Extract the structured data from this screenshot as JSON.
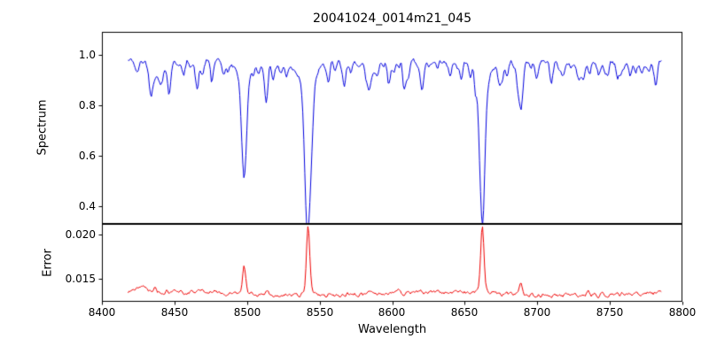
{
  "chart_data": {
    "type": "line",
    "title": "20041024_0014m21_045",
    "xlabel": "Wavelength",
    "xlim": [
      8400,
      8800
    ],
    "x_start": 8418,
    "x_end": 8786,
    "sample_step": 0.7,
    "seed": 42,
    "x_ticks": [
      8400,
      8450,
      8500,
      8550,
      8600,
      8650,
      8700,
      8750,
      8800
    ],
    "x_tick_labels": [
      "8400",
      "8450",
      "8500",
      "8550",
      "8600",
      "8650",
      "8700",
      "8750",
      "8800"
    ],
    "grid": false,
    "legend": "none",
    "panels": [
      {
        "name": "spectrum",
        "ylabel": "Spectrum",
        "color": "#0000dd",
        "ylim": [
          0.33,
          1.09
        ],
        "yticks": [
          0.4,
          0.6,
          0.8,
          1.0
        ],
        "ytick_labels": [
          "0.4",
          "0.6",
          "0.8",
          "1.0"
        ],
        "baseline": 0.97,
        "noise_amp": 0.02,
        "wave_amp": 0.006,
        "wave_period": 47,
        "wave_phase": 1.3,
        "clip_max": 1.025,
        "micro_lines": {
          "count": 85,
          "max_depth": 0.055,
          "width": 0.9
        },
        "features": [
          {
            "c": 8424.0,
            "a": -0.05,
            "w": 1.0
          },
          {
            "c": 8433.9,
            "a": -0.11,
            "w": 1.4
          },
          {
            "c": 8440.0,
            "a": -0.05,
            "w": 1.0
          },
          {
            "c": 8446.5,
            "a": -0.04,
            "w": 0.9
          },
          {
            "c": 8456.0,
            "a": -0.05,
            "w": 1.0
          },
          {
            "c": 8465.0,
            "a": -0.07,
            "w": 1.1
          },
          {
            "c": 8469.0,
            "a": -0.05,
            "w": 0.9
          },
          {
            "c": 8476.0,
            "a": -0.05,
            "w": 0.9
          },
          {
            "c": 8484.0,
            "a": -0.04,
            "w": 0.9
          },
          {
            "c": 8498.0,
            "a": -0.42,
            "w": 1.7
          },
          {
            "c": 8498.0,
            "a": -0.04,
            "w": 5.0
          },
          {
            "c": 8513.5,
            "a": -0.1,
            "w": 1.2
          },
          {
            "c": 8518.0,
            "a": -0.07,
            "w": 1.0
          },
          {
            "c": 8527.0,
            "a": -0.05,
            "w": 0.9
          },
          {
            "c": 8542.1,
            "a": -0.57,
            "w": 2.1
          },
          {
            "c": 8542.1,
            "a": -0.06,
            "w": 7.0
          },
          {
            "c": 8556.0,
            "a": -0.04,
            "w": 0.9
          },
          {
            "c": 8560.5,
            "a": -0.05,
            "w": 0.9
          },
          {
            "c": 8572.0,
            "a": -0.04,
            "w": 0.9
          },
          {
            "c": 8582.0,
            "a": -0.06,
            "w": 1.0
          },
          {
            "c": 8590.0,
            "a": -0.04,
            "w": 0.9
          },
          {
            "c": 8598.0,
            "a": -0.06,
            "w": 1.0
          },
          {
            "c": 8611.0,
            "a": -0.05,
            "w": 1.0
          },
          {
            "c": 8621.0,
            "a": -0.05,
            "w": 0.9
          },
          {
            "c": 8640.0,
            "a": -0.05,
            "w": 1.0
          },
          {
            "c": 8648.0,
            "a": -0.04,
            "w": 0.9
          },
          {
            "c": 8662.1,
            "a": -0.55,
            "w": 1.9
          },
          {
            "c": 8662.1,
            "a": -0.05,
            "w": 6.0
          },
          {
            "c": 8674.0,
            "a": -0.07,
            "w": 1.1
          },
          {
            "c": 8679.0,
            "a": -0.05,
            "w": 0.9
          },
          {
            "c": 8688.6,
            "a": -0.16,
            "w": 1.4
          },
          {
            "c": 8699.0,
            "a": -0.04,
            "w": 0.9
          },
          {
            "c": 8710.0,
            "a": -0.05,
            "w": 1.0
          },
          {
            "c": 8718.0,
            "a": -0.04,
            "w": 0.9
          },
          {
            "c": 8728.0,
            "a": -0.05,
            "w": 1.0
          },
          {
            "c": 8736.0,
            "a": -0.04,
            "w": 0.9
          },
          {
            "c": 8747.0,
            "a": -0.05,
            "w": 1.0
          },
          {
            "c": 8757.0,
            "a": -0.04,
            "w": 0.9
          },
          {
            "c": 8764.0,
            "a": -0.05,
            "w": 1.0
          },
          {
            "c": 8772.0,
            "a": -0.04,
            "w": 0.9
          }
        ]
      },
      {
        "name": "error",
        "ylabel": "Error",
        "color": "#ee0000",
        "ylim": [
          0.0124,
          0.0212
        ],
        "yticks": [
          0.015,
          0.02
        ],
        "ytick_labels": [
          "0.015",
          "0.020"
        ],
        "baseline": 0.0133,
        "noise_amp": 0.0004,
        "wave_amp": 0.0002,
        "wave_period": 180,
        "wave_phase": 0.5,
        "features": [
          {
            "c": 8427.0,
            "a": 0.0006,
            "w": 4.0
          },
          {
            "c": 8437.0,
            "a": 0.0005,
            "w": 1.0
          },
          {
            "c": 8470.0,
            "a": 0.0004,
            "w": 1.0
          },
          {
            "c": 8498.0,
            "a": 0.003,
            "w": 1.1
          },
          {
            "c": 8513.5,
            "a": 0.0006,
            "w": 1.0
          },
          {
            "c": 8542.1,
            "a": 0.007,
            "w": 1.1
          },
          {
            "c": 8542.1,
            "a": 0.0008,
            "w": 3.0
          },
          {
            "c": 8605.0,
            "a": 0.0004,
            "w": 1.0
          },
          {
            "c": 8662.1,
            "a": 0.0068,
            "w": 1.1
          },
          {
            "c": 8662.1,
            "a": 0.0007,
            "w": 3.0
          },
          {
            "c": 8688.6,
            "a": 0.0012,
            "w": 1.0
          },
          {
            "c": 8735.0,
            "a": 0.0004,
            "w": 1.0
          }
        ]
      }
    ]
  }
}
